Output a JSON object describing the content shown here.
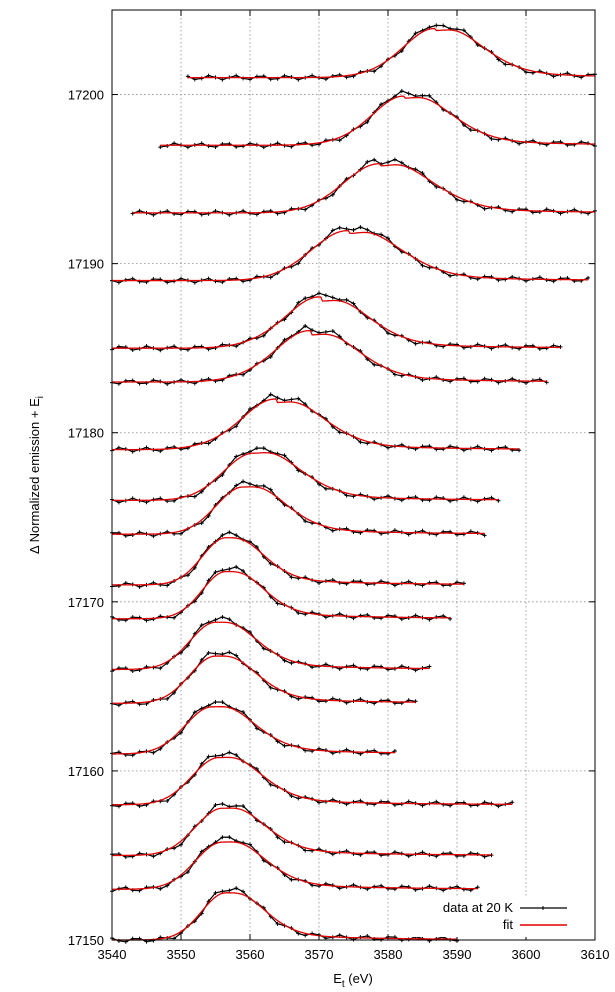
{
  "chart_data": {
    "type": "line",
    "title": "",
    "xlabel": "E",
    "xlabel_sub": "t",
    "xlabel_unit": " (eV)",
    "ylabel": "Δ Normalized emission + E",
    "ylabel_sub": "i",
    "xlim": [
      3540,
      3610
    ],
    "ylim": [
      17150,
      17205
    ],
    "x_ticks": [
      3540,
      3550,
      3560,
      3570,
      3580,
      3590,
      3600,
      3610
    ],
    "y_ticks": [
      17150,
      17160,
      17170,
      17180,
      17190,
      17200
    ],
    "grid": true,
    "legend": {
      "position": "bottom-right",
      "entries": [
        {
          "label": "data at 20 K",
          "color": "#000000",
          "marker": "plus"
        },
        {
          "label": "fit",
          "color": "#e00000",
          "marker": "none"
        }
      ]
    },
    "series": [
      {
        "ei": 17150,
        "xmin": 3540,
        "xmax": 3590,
        "peak": 3556.5,
        "amp": 3.0,
        "w": 3.6,
        "left_shoulder": 0.0
      },
      {
        "ei": 17153,
        "xmin": 3540,
        "xmax": 3593,
        "peak": 3556.0,
        "amp": 3.0,
        "w": 4.0,
        "left_shoulder": 0.0
      },
      {
        "ei": 17155,
        "xmin": 3540,
        "xmax": 3595,
        "peak": 3556.0,
        "amp": 3.0,
        "w": 4.0,
        "left_shoulder": 0.0
      },
      {
        "ei": 17158,
        "xmin": 3540,
        "xmax": 3598,
        "peak": 3555.5,
        "amp": 3.0,
        "w": 4.0,
        "left_shoulder": 0.0
      },
      {
        "ei": 17161,
        "xmin": 3540,
        "xmax": 3581,
        "peak": 3554.5,
        "amp": 3.0,
        "w": 4.0,
        "left_shoulder": 0.0
      },
      {
        "ei": 17164,
        "xmin": 3540,
        "xmax": 3584,
        "peak": 3555.0,
        "amp": 3.0,
        "w": 3.8,
        "left_shoulder": 0.0
      },
      {
        "ei": 17166,
        "xmin": 3540,
        "xmax": 3586,
        "peak": 3555.0,
        "amp": 3.0,
        "w": 3.8,
        "left_shoulder": 0.0
      },
      {
        "ei": 17169,
        "xmin": 3540,
        "xmax": 3589,
        "peak": 3556.5,
        "amp": 3.0,
        "w": 3.5,
        "left_shoulder": 0.0
      },
      {
        "ei": 17171,
        "xmin": 3540,
        "xmax": 3591,
        "peak": 3556.5,
        "amp": 3.0,
        "w": 3.5,
        "left_shoulder": 0.0
      },
      {
        "ei": 17174,
        "xmin": 3540,
        "xmax": 3594,
        "peak": 3559.0,
        "amp": 3.0,
        "w": 4.0,
        "left_shoulder": 0.0
      },
      {
        "ei": 17176,
        "xmin": 3540,
        "xmax": 3596,
        "peak": 3560.5,
        "amp": 3.0,
        "w": 4.5,
        "left_shoulder": 0.0
      },
      {
        "ei": 17179,
        "xmin": 3540,
        "xmax": 3599,
        "peak": 3564.0,
        "amp": 3.0,
        "w": 4.5,
        "left_shoulder": 0.5
      },
      {
        "ei": 17183,
        "xmin": 3540,
        "xmax": 3603,
        "peak": 3569.0,
        "amp": 3.0,
        "w": 4.5,
        "left_shoulder": 0.6
      },
      {
        "ei": 17185,
        "xmin": 3540,
        "xmax": 3605,
        "peak": 3570.5,
        "amp": 3.0,
        "w": 4.5,
        "left_shoulder": 0.6
      },
      {
        "ei": 17189,
        "xmin": 3540,
        "xmax": 3609,
        "peak": 3574.5,
        "amp": 3.0,
        "w": 5.0,
        "left_shoulder": 0.4
      },
      {
        "ei": 17193,
        "xmin": 3543,
        "xmax": 3610,
        "peak": 3579.0,
        "amp": 3.0,
        "w": 5.0,
        "left_shoulder": 0.3
      },
      {
        "ei": 17197,
        "xmin": 3547,
        "xmax": 3610,
        "peak": 3582.5,
        "amp": 3.0,
        "w": 4.5,
        "left_shoulder": 0.3
      },
      {
        "ei": 17201,
        "xmin": 3551,
        "xmax": 3610,
        "peak": 3587.0,
        "amp": 3.0,
        "w": 4.5,
        "left_shoulder": 0.3
      }
    ],
    "colors": {
      "data": "#000000",
      "fit": "#e00000",
      "grid": "#8c8c8c"
    }
  }
}
